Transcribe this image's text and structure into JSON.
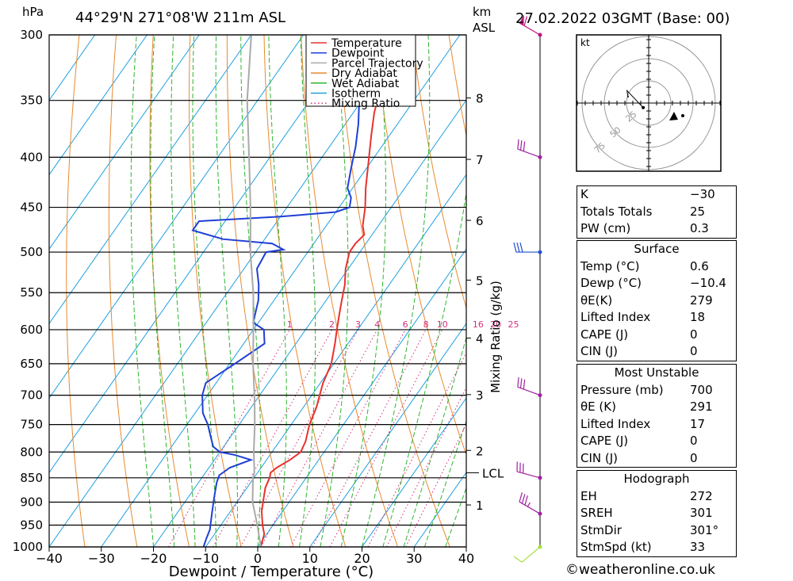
{
  "header": {
    "pressure_unit": "hPa",
    "location": "44°29'N  271°08'W  211m  ASL",
    "km_label": "km",
    "asl_label": "ASL",
    "datetime": "27.02.2022  03GMT  (Base: 00)"
  },
  "chart_data": {
    "type": "line",
    "xlabel": "Dewpoint / Temperature (°C)",
    "ylabel_right": "Mixing Ratio (g/kg)",
    "x_ticks": [
      -40,
      -30,
      -20,
      -10,
      0,
      10,
      20,
      30,
      40
    ],
    "x_tick_labels": [
      "−40",
      "−30",
      "−20",
      "−10",
      "0",
      "10",
      "20",
      "30",
      "40"
    ],
    "pressure_levels": [
      300,
      350,
      400,
      450,
      500,
      550,
      600,
      650,
      700,
      750,
      800,
      850,
      900,
      950,
      1000
    ],
    "km_ticks": [
      {
        "p": 348,
        "label": "8"
      },
      {
        "p": 402,
        "label": "7"
      },
      {
        "p": 464,
        "label": "6"
      },
      {
        "p": 534,
        "label": "5"
      },
      {
        "p": 612,
        "label": "4"
      },
      {
        "p": 699,
        "label": "3"
      },
      {
        "p": 797,
        "label": "2"
      },
      {
        "p": 906,
        "label": "1"
      }
    ],
    "lcl": {
      "p": 840,
      "label": "LCL"
    },
    "mixing_ratio_labels": [
      "1",
      "2",
      "3",
      "4",
      "6",
      "8",
      "10",
      "16",
      "20",
      "25"
    ],
    "legend": [
      {
        "name": "Temperature",
        "color": "#e8322d",
        "style": "solid"
      },
      {
        "name": "Dewpoint",
        "color": "#1f3fd6",
        "style": "solid"
      },
      {
        "name": "Parcel Trajectory",
        "color": "#aaaaaa",
        "style": "solid"
      },
      {
        "name": "Dry Adiabat",
        "color": "#e88a30",
        "style": "solid"
      },
      {
        "name": "Wet Adiabat",
        "color": "#2fb52f",
        "style": "solid"
      },
      {
        "name": "Isotherm",
        "color": "#1ea0e0",
        "style": "solid"
      },
      {
        "name": "Mixing Ratio",
        "color": "#d0307a",
        "style": "dotted"
      }
    ],
    "series": [
      {
        "name": "Temperature",
        "color": "#e8322d",
        "points": [
          [
            1000,
            0.6
          ],
          [
            970,
            -0.5
          ],
          [
            950,
            -2
          ],
          [
            920,
            -4
          ],
          [
            900,
            -5
          ],
          [
            870,
            -6.5
          ],
          [
            850,
            -7
          ],
          [
            840,
            -7.5
          ],
          [
            830,
            -7
          ],
          [
            815,
            -5.5
          ],
          [
            800,
            -4.5
          ],
          [
            780,
            -5
          ],
          [
            760,
            -6
          ],
          [
            750,
            -6.5
          ],
          [
            720,
            -7.5
          ],
          [
            700,
            -8.5
          ],
          [
            680,
            -9.5
          ],
          [
            650,
            -10.5
          ],
          [
            620,
            -12.5
          ],
          [
            600,
            -14
          ],
          [
            580,
            -15.5
          ],
          [
            560,
            -17
          ],
          [
            540,
            -18.5
          ],
          [
            520,
            -20.5
          ],
          [
            500,
            -22
          ],
          [
            490,
            -22
          ],
          [
            480,
            -21.5
          ],
          [
            470,
            -23
          ],
          [
            450,
            -25
          ],
          [
            430,
            -27.5
          ],
          [
            400,
            -31
          ],
          [
            380,
            -33.5
          ],
          [
            360,
            -36
          ],
          [
            350,
            -37
          ],
          [
            340,
            -37.5
          ],
          [
            320,
            -40
          ],
          [
            300,
            -42.5
          ]
        ]
      },
      {
        "name": "Dewpoint",
        "color": "#1f3fd6",
        "points": [
          [
            1000,
            -10.4
          ],
          [
            980,
            -11
          ],
          [
            960,
            -11.5
          ],
          [
            940,
            -12.5
          ],
          [
            920,
            -13.5
          ],
          [
            900,
            -14.5
          ],
          [
            880,
            -15.5
          ],
          [
            860,
            -16.5
          ],
          [
            845,
            -17
          ],
          [
            830,
            -16
          ],
          [
            815,
            -13
          ],
          [
            805,
            -17
          ],
          [
            800,
            -20
          ],
          [
            790,
            -22
          ],
          [
            770,
            -24
          ],
          [
            750,
            -26
          ],
          [
            730,
            -28.5
          ],
          [
            700,
            -31
          ],
          [
            680,
            -32
          ],
          [
            650,
            -29
          ],
          [
            620,
            -26
          ],
          [
            600,
            -28
          ],
          [
            590,
            -31
          ],
          [
            560,
            -33
          ],
          [
            540,
            -35
          ],
          [
            520,
            -37.5
          ],
          [
            500,
            -38
          ],
          [
            497,
            -35
          ],
          [
            490,
            -38
          ],
          [
            485,
            -48
          ],
          [
            475,
            -55
          ],
          [
            465,
            -55
          ],
          [
            460,
            -40
          ],
          [
            455,
            -30
          ],
          [
            450,
            -28
          ],
          [
            440,
            -29
          ],
          [
            430,
            -31
          ],
          [
            410,
            -33
          ],
          [
            390,
            -35
          ],
          [
            370,
            -37.5
          ],
          [
            350,
            -40.5
          ],
          [
            340,
            -42
          ],
          [
            330,
            -43.5
          ],
          [
            320,
            -46
          ],
          [
            310,
            -48
          ],
          [
            305,
            -50
          ],
          [
            300,
            -52
          ]
        ]
      },
      {
        "name": "Parcel Trajectory",
        "color": "#aaaaaa",
        "points": [
          [
            1000,
            0.6
          ],
          [
            950,
            -3
          ],
          [
            900,
            -7
          ],
          [
            850,
            -10.2
          ],
          [
            840,
            -10.6
          ],
          [
            800,
            -13.5
          ],
          [
            750,
            -17
          ],
          [
            700,
            -21
          ],
          [
            650,
            -25.5
          ],
          [
            600,
            -30
          ],
          [
            550,
            -35
          ],
          [
            500,
            -41
          ],
          [
            450,
            -47
          ],
          [
            400,
            -54
          ],
          [
            350,
            -62
          ],
          [
            300,
            -70
          ]
        ]
      }
    ],
    "winds": [
      {
        "p": 1000,
        "dir": 230,
        "speed": 10,
        "color": "#a4e040"
      },
      {
        "p": 925,
        "dir": 300,
        "speed": 35,
        "color": "#a020a0"
      },
      {
        "p": 850,
        "dir": 285,
        "speed": 30,
        "color": "#a020a0"
      },
      {
        "p": 700,
        "dir": 290,
        "speed": 30,
        "color": "#a020a0"
      },
      {
        "p": 500,
        "dir": 270,
        "speed": 30,
        "color": "#2050d0"
      },
      {
        "p": 400,
        "dir": 290,
        "speed": 30,
        "color": "#a020a0"
      },
      {
        "p": 300,
        "dir": 300,
        "speed": 60,
        "color": "#c01080"
      }
    ],
    "hodograph": {
      "unit_label": "kt",
      "ring_labels": [
        "25",
        "50",
        "75"
      ]
    }
  },
  "stats": {
    "indices": [
      {
        "label": "K",
        "value": "−30"
      },
      {
        "label": "Totals Totals",
        "value": "25"
      },
      {
        "label": "PW (cm)",
        "value": "0.3"
      }
    ],
    "surface": {
      "title": "Surface",
      "rows": [
        {
          "label": "Temp (°C)",
          "value": "0.6"
        },
        {
          "label": "Dewp (°C)",
          "value": "−10.4"
        },
        {
          "label": "θE(K)",
          "value": "279"
        },
        {
          "label": "Lifted Index",
          "value": "18"
        },
        {
          "label": "CAPE (J)",
          "value": "0"
        },
        {
          "label": "CIN (J)",
          "value": "0"
        }
      ]
    },
    "most_unstable": {
      "title": "Most Unstable",
      "rows": [
        {
          "label": "Pressure (mb)",
          "value": "700"
        },
        {
          "label": "θE (K)",
          "value": "291"
        },
        {
          "label": "Lifted Index",
          "value": "17"
        },
        {
          "label": "CAPE (J)",
          "value": "0"
        },
        {
          "label": "CIN (J)",
          "value": "0"
        }
      ]
    },
    "hodograph": {
      "title": "Hodograph",
      "rows": [
        {
          "label": "EH",
          "value": "272"
        },
        {
          "label": "SREH",
          "value": "301"
        },
        {
          "label": "StmDir",
          "value": "301°"
        },
        {
          "label": "StmSpd (kt)",
          "value": "33"
        }
      ]
    }
  },
  "footer": "©weatheronline.co.uk"
}
